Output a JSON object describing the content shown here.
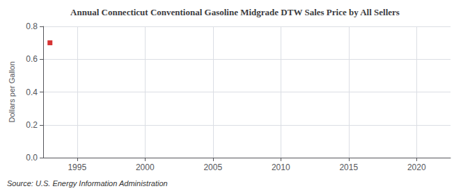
{
  "chart_data": {
    "type": "scatter",
    "title": "Annual Connecticut Conventional Gasoline Midgrade DTW Sales Price by All Sellers",
    "ylabel": "Dollars per Gallon",
    "source": "Source: U.S. Energy Information Administration",
    "x": [
      1993
    ],
    "values": [
      0.7
    ],
    "color": "#cc0000",
    "marker": "square",
    "xlim": [
      1992.5,
      2022.5
    ],
    "xticks": [
      1995,
      2000,
      2005,
      2010,
      2015,
      2020
    ],
    "ylim": [
      0.0,
      0.8
    ],
    "yticks": [
      {
        "value": 0.0,
        "label": "0.0"
      },
      0.2,
      0.4,
      0.6,
      0.8
    ],
    "grid": true
  }
}
